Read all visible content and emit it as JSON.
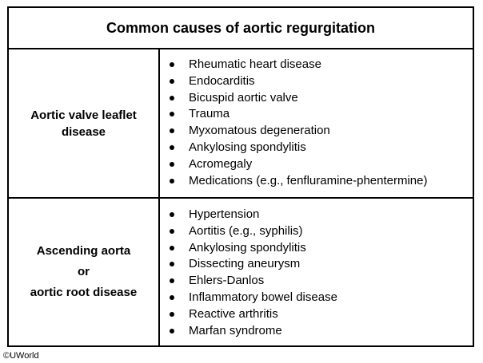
{
  "table": {
    "title": "Common causes of aortic regurgitation",
    "rows": [
      {
        "heading_lines": [
          "Aortic valve leaflet",
          "disease"
        ],
        "causes": [
          "Rheumatic heart disease",
          "Endocarditis",
          "Bicuspid aortic valve",
          "Trauma",
          "Myxomatous degeneration",
          "Ankylosing spondylitis",
          "Acromegaly",
          "Medications (e.g., fenfluramine-phentermine)"
        ]
      },
      {
        "heading_lines": [
          "Ascending aorta",
          "or",
          "aortic root disease"
        ],
        "causes": [
          "Hypertension",
          "Aortitis (e.g., syphilis)",
          "Ankylosing spondylitis",
          "Dissecting aneurysm",
          "Ehlers-Danlos",
          "Inflammatory bowel disease",
          "Reactive arthritis",
          "Marfan syndrome"
        ]
      }
    ]
  },
  "footer": {
    "copyright_symbol": "©",
    "brand": "UWorld"
  }
}
